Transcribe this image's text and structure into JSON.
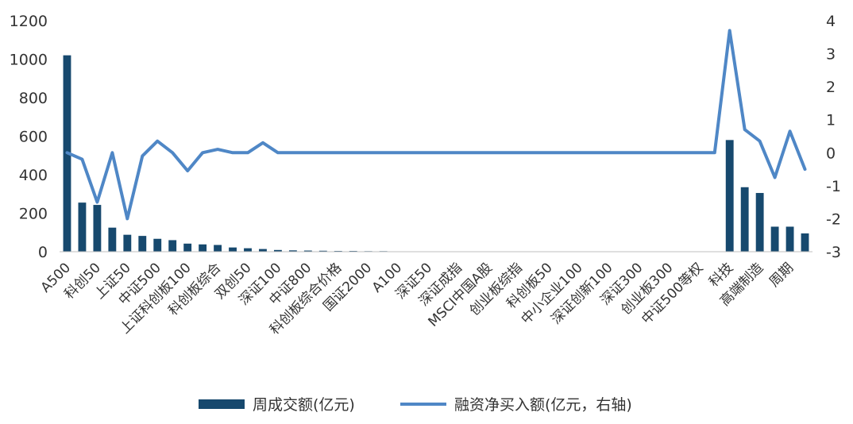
{
  "chart_data": {
    "type": "bar+line",
    "categories": [
      "A500",
      "",
      "科创50",
      "",
      "上证50",
      "",
      "中证500",
      "",
      "上证科创板100",
      "",
      "科创板综合",
      "",
      "双创50",
      "",
      "深证100",
      "",
      "中证800",
      "",
      "科创板综合价格",
      "",
      "国证2000",
      "",
      "A100",
      "",
      "深证50",
      "",
      "深证成指",
      "",
      "MSCI中国A股",
      "",
      "创业板综指",
      "",
      "科创板50",
      "",
      "中小企业100",
      "",
      "深证创新100",
      "",
      "深证300",
      "",
      "创业板300",
      "",
      "中证500等权",
      "",
      "科技",
      "",
      "高端制造",
      "",
      "周期",
      ""
    ],
    "series": [
      {
        "name": "周成交额(亿元)",
        "type": "bar",
        "axis": "left",
        "color": "#17496e",
        "values": [
          1020,
          255,
          243,
          125,
          88,
          82,
          67,
          60,
          42,
          38,
          35,
          22,
          18,
          14,
          9,
          7,
          6,
          5,
          4,
          4,
          3,
          3,
          2,
          2,
          2,
          2,
          2,
          2,
          2,
          2,
          2,
          2,
          2,
          2,
          2,
          2,
          2,
          2,
          2,
          2,
          2,
          2,
          2,
          2,
          580,
          335,
          305,
          130,
          130,
          95
        ]
      },
      {
        "name": "融资净买入额(亿元，右轴)",
        "type": "line",
        "axis": "right",
        "color": "#4f87c6",
        "values": [
          0,
          -0.2,
          -1.5,
          0,
          -2,
          -0.1,
          0.35,
          0,
          -0.55,
          0,
          0.1,
          0,
          0,
          0.3,
          0,
          0,
          0,
          0,
          0,
          0,
          0,
          0,
          0,
          0,
          0,
          0,
          0,
          0,
          0,
          0,
          0,
          0,
          0,
          0,
          0,
          0,
          0,
          0,
          0,
          0,
          0,
          0,
          0,
          0,
          3.7,
          0.7,
          0.35,
          -0.75,
          0.65,
          -0.5
        ]
      }
    ],
    "y_left": {
      "ticks": [
        "0",
        "200",
        "400",
        "600",
        "800",
        "1000",
        "1200"
      ],
      "lim": [
        0,
        1200
      ]
    },
    "y_right": {
      "ticks": [
        "-3",
        "-2",
        "-1",
        "0",
        "1",
        "2",
        "3",
        "4"
      ],
      "lim": [
        -3,
        4
      ]
    },
    "grid": false,
    "legend_position": "bottom"
  },
  "legend": {
    "bar_label": "周成交额(亿元)",
    "line_label": "融资净买入额(亿元，右轴)"
  }
}
